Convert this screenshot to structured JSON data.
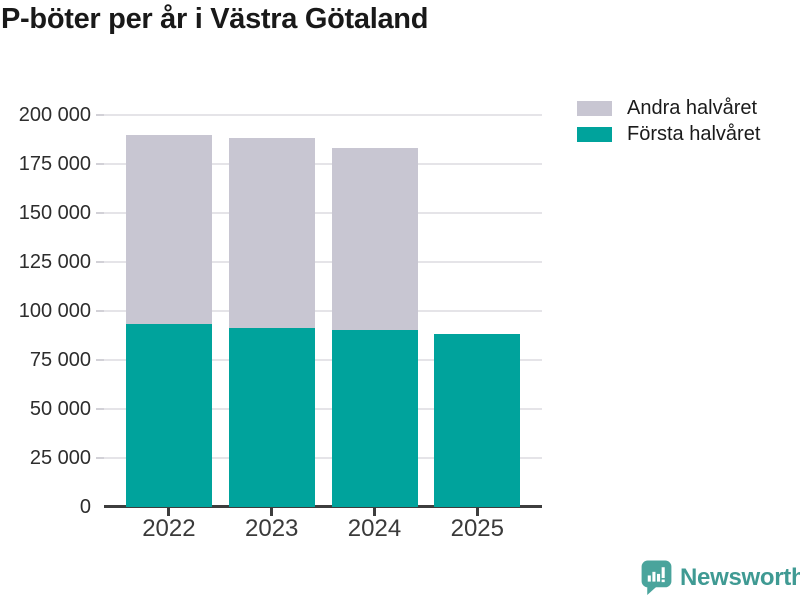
{
  "title": "P-böter per år i Västra Götaland",
  "legend": {
    "items": [
      {
        "label": "Andra halvåret",
        "color": "#c8c6d2"
      },
      {
        "label": "Första halvåret",
        "color": "#00a39c"
      }
    ]
  },
  "chart_data": {
    "type": "bar",
    "stacked": true,
    "title": "P-böter per år i Västra Götaland",
    "categories": [
      "2022",
      "2023",
      "2024",
      "2025"
    ],
    "series": [
      {
        "name": "Första halvåret",
        "color": "#00a39c",
        "values": [
          93500,
          91500,
          90500,
          88500
        ]
      },
      {
        "name": "Andra halvåret",
        "color": "#c8c6d2",
        "values": [
          96500,
          97000,
          92500,
          0
        ]
      }
    ],
    "totals": [
      190000,
      188500,
      183000,
      88500
    ],
    "xlabel": "",
    "ylabel": "",
    "ylim": [
      0,
      200000
    ],
    "ytick_step": 25000,
    "ytick_labels": [
      "0",
      "25 000",
      "50 000",
      "75 000",
      "100 000",
      "125 000",
      "150 000",
      "175 000",
      "200 000"
    ],
    "grid": true,
    "legend_position": "top-right"
  },
  "branding": {
    "logo_text": "Newsworthy",
    "brand_color": "#3f9a93",
    "bubble_color": "#4aa49c",
    "icon": "bar-chart-speech-bubble-icon"
  }
}
